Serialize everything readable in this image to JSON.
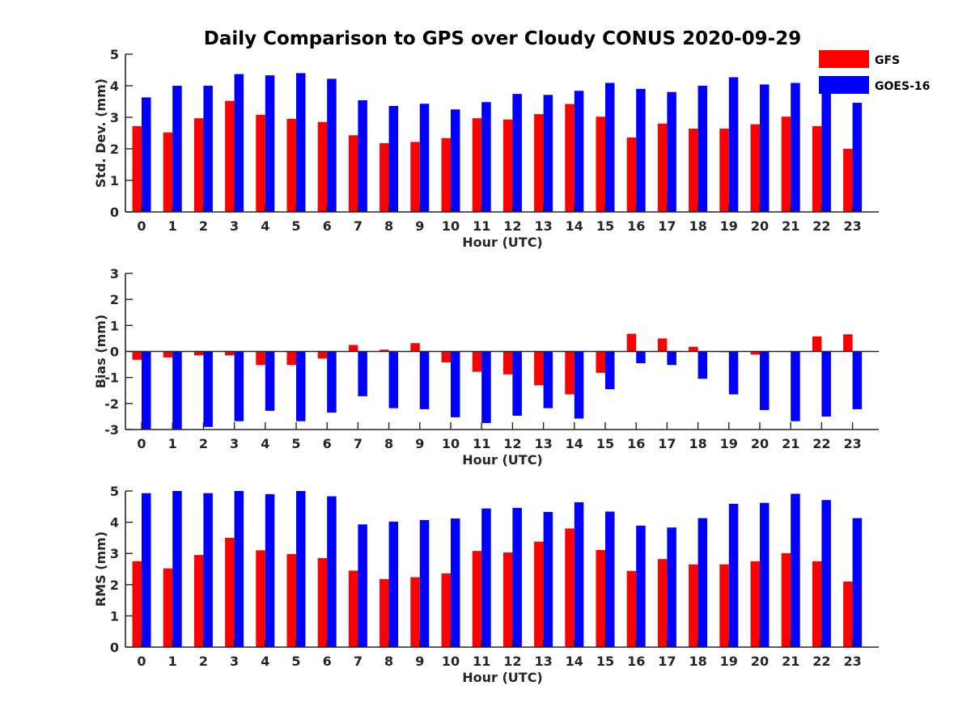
{
  "title": "Daily Comparison to GPS over Cloudy CONUS 2020-09-29",
  "legend": [
    {
      "name": "GFS",
      "color": "#ff0000"
    },
    {
      "name": "GOES-16",
      "color": "#0000ff"
    }
  ],
  "chart_data": [
    {
      "type": "bar",
      "categories": [
        "0",
        "1",
        "2",
        "3",
        "4",
        "5",
        "6",
        "7",
        "8",
        "9",
        "10",
        "11",
        "12",
        "13",
        "14",
        "15",
        "16",
        "17",
        "18",
        "19",
        "20",
        "21",
        "22",
        "23"
      ],
      "xlabel": "Hour (UTC)",
      "ylabel": "Std. Dev. (mm)",
      "ylim": [
        0,
        5
      ],
      "yticks": [
        "0",
        "1",
        "2",
        "3",
        "4",
        "5"
      ],
      "series": [
        {
          "name": "GFS",
          "color": "#ff0000",
          "values": [
            2.72,
            2.52,
            2.97,
            3.52,
            3.08,
            2.95,
            2.85,
            2.43,
            2.18,
            2.22,
            2.34,
            2.97,
            2.93,
            3.1,
            3.42,
            3.02,
            2.36,
            2.8,
            2.64,
            2.64,
            2.78,
            3.02,
            2.72,
            2.0
          ]
        },
        {
          "name": "GOES-16",
          "color": "#0000ff",
          "values": [
            3.63,
            4.0,
            4.0,
            4.37,
            4.33,
            4.4,
            4.22,
            3.54,
            3.36,
            3.43,
            3.25,
            3.48,
            3.74,
            3.71,
            3.84,
            4.09,
            3.9,
            3.8,
            4.0,
            4.27,
            4.04,
            4.09,
            4.02,
            3.46
          ]
        }
      ]
    },
    {
      "type": "bar",
      "categories": [
        "0",
        "1",
        "2",
        "3",
        "4",
        "5",
        "6",
        "7",
        "8",
        "9",
        "10",
        "11",
        "12",
        "13",
        "14",
        "15",
        "16",
        "17",
        "18",
        "19",
        "20",
        "21",
        "22",
        "23"
      ],
      "xlabel": "Hour (UTC)",
      "ylabel": "Bias (mm)",
      "ylim": [
        -3,
        3
      ],
      "yticks": [
        "-3",
        "-2",
        "-1",
        "0",
        "1",
        "2",
        "3"
      ],
      "series": [
        {
          "name": "GFS",
          "color": "#ff0000",
          "values": [
            -0.32,
            -0.23,
            -0.15,
            -0.15,
            -0.52,
            -0.52,
            -0.27,
            0.25,
            0.07,
            0.32,
            -0.42,
            -0.78,
            -0.88,
            -1.3,
            -1.65,
            -0.82,
            0.68,
            0.5,
            0.18,
            -0.03,
            -0.12,
            -0.02,
            0.58,
            0.66
          ]
        },
        {
          "name": "GOES-16",
          "color": "#0000ff",
          "values": [
            -3.0,
            -3.0,
            -2.9,
            -2.68,
            -2.28,
            -2.68,
            -2.35,
            -1.72,
            -2.18,
            -2.22,
            -2.53,
            -2.75,
            -2.47,
            -2.18,
            -2.58,
            -1.45,
            -0.45,
            -0.52,
            -1.05,
            -1.65,
            -2.25,
            -2.68,
            -2.5,
            -2.22
          ]
        }
      ]
    },
    {
      "type": "bar",
      "categories": [
        "0",
        "1",
        "2",
        "3",
        "4",
        "5",
        "6",
        "7",
        "8",
        "9",
        "10",
        "11",
        "12",
        "13",
        "14",
        "15",
        "16",
        "17",
        "18",
        "19",
        "20",
        "21",
        "22",
        "23"
      ],
      "xlabel": "Hour (UTC)",
      "ylabel": "RMS (mm)",
      "ylim": [
        0,
        5
      ],
      "yticks": [
        "0",
        "1",
        "2",
        "3",
        "4",
        "5"
      ],
      "series": [
        {
          "name": "GFS",
          "color": "#ff0000",
          "values": [
            2.75,
            2.52,
            2.95,
            3.5,
            3.1,
            2.98,
            2.85,
            2.45,
            2.18,
            2.24,
            2.36,
            3.08,
            3.03,
            3.38,
            3.8,
            3.11,
            2.44,
            2.82,
            2.65,
            2.65,
            2.75,
            3.01,
            2.75,
            2.1
          ]
        },
        {
          "name": "GOES-16",
          "color": "#0000ff",
          "values": [
            4.93,
            5.0,
            4.93,
            5.0,
            4.9,
            5.0,
            4.83,
            3.93,
            4.02,
            4.07,
            4.12,
            4.44,
            4.46,
            4.33,
            4.64,
            4.34,
            3.89,
            3.83,
            4.13,
            4.59,
            4.62,
            4.91,
            4.71,
            4.13
          ]
        }
      ]
    }
  ]
}
